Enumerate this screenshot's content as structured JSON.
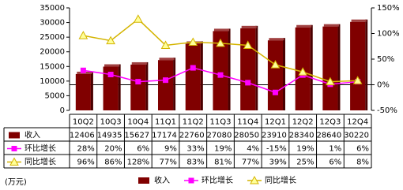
{
  "chart_data": {
    "type": "bar",
    "categories": [
      "10Q2",
      "10Q3",
      "10Q4",
      "11Q1",
      "11Q2",
      "11Q3",
      "11Q4",
      "12Q1",
      "12Q2",
      "12Q3",
      "12Q4"
    ],
    "series": [
      {
        "name": "收入",
        "color": "#800000",
        "type": "bar",
        "values": [
          12406,
          14935,
          15627,
          17174,
          22760,
          27080,
          28050,
          23910,
          28340,
          28640,
          30220
        ]
      },
      {
        "name": "环比增长",
        "color": "#ff00ff",
        "type": "line",
        "marker": "square",
        "axis": "y2",
        "values": [
          28,
          20,
          6,
          9,
          33,
          19,
          4,
          -15,
          19,
          1,
          6
        ],
        "value_labels": [
          "28%",
          "20%",
          "6%",
          "9%",
          "33%",
          "19%",
          "4%",
          "-15%",
          "19%",
          "1%",
          "6%"
        ]
      },
      {
        "name": "同比增长",
        "color": "#d4b400",
        "type": "line",
        "marker": "triangle",
        "axis": "y2",
        "values": [
          96,
          86,
          128,
          77,
          83,
          81,
          77,
          39,
          25,
          6,
          8
        ],
        "value_labels": [
          "96%",
          "86%",
          "128%",
          "77%",
          "83%",
          "81%",
          "77%",
          "39%",
          "25%",
          "6%",
          "8%"
        ]
      }
    ],
    "ylim": [
      0,
      35000
    ],
    "yticks": [
      0,
      5000,
      10000,
      15000,
      20000,
      25000,
      30000,
      35000
    ],
    "y2lim": [
      -50,
      150
    ],
    "y2ticks": [
      {
        "value": -50,
        "label": "-50%"
      },
      {
        "value": 0,
        "label": "0%"
      },
      {
        "value": 50,
        "label": "50%"
      },
      {
        "value": 100,
        "label": "100%"
      },
      {
        "value": 150,
        "label": "150%"
      }
    ],
    "unit": "(万元)",
    "grid": false
  }
}
